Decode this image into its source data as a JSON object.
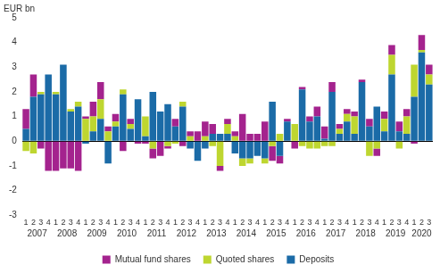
{
  "chart_data": {
    "type": "bar",
    "stacked": true,
    "y_label": "EUR bn",
    "legend": "bottom",
    "grid": false,
    "categories": [
      "1",
      "2",
      "3",
      "4",
      "1",
      "2",
      "3",
      "4",
      "1",
      "2",
      "3",
      "4",
      "1",
      "2",
      "3",
      "4",
      "1",
      "2",
      "3",
      "4",
      "1",
      "2",
      "3",
      "4",
      "1",
      "2",
      "3",
      "4",
      "1",
      "2",
      "3",
      "4",
      "1",
      "2",
      "3",
      "4",
      "1",
      "2",
      "3",
      "4",
      "1",
      "2",
      "3",
      "4",
      "1",
      "2",
      "3",
      "4",
      "1",
      "2",
      "3",
      "4",
      "1",
      "2",
      "3"
    ],
    "groups": [
      "2007",
      "2008",
      "2009",
      "2010",
      "2011",
      "2012",
      "2013",
      "2014",
      "2015",
      "2016",
      "2017",
      "2018",
      "2019",
      "2020"
    ],
    "ylim": [
      -3,
      5
    ],
    "yticks": [
      -3,
      -2,
      -1,
      0,
      1,
      2,
      3,
      4,
      5
    ],
    "series": [
      {
        "name": "Deposits",
        "color": "#1b6ba7",
        "values": [
          0.5,
          1.8,
          1.9,
          2.7,
          1.9,
          3.1,
          1.2,
          1.4,
          -0.1,
          0.4,
          0.9,
          -0.9,
          0.6,
          1.9,
          0.5,
          1.7,
          0.2,
          2.0,
          1.2,
          1.5,
          0.6,
          1.4,
          -0.3,
          -0.8,
          -0.3,
          0.3,
          0.3,
          0.3,
          -0.5,
          -0.7,
          -0.7,
          -0.6,
          -0.7,
          1.6,
          -0.6,
          0.8,
          0.0,
          2.1,
          0.8,
          1.0,
          0.1,
          2.0,
          0.3,
          0.8,
          0.3,
          2.4,
          0.6,
          1.4,
          0.4,
          2.7,
          0.4,
          0.3,
          1.8,
          3.6,
          2.3
        ]
      },
      {
        "name": "Quoted shares",
        "color": "#bed630",
        "values": [
          -0.4,
          -0.5,
          0.1,
          0.0,
          0.1,
          0.0,
          0.1,
          0.2,
          0.9,
          0.6,
          0.8,
          0.4,
          0.2,
          0.2,
          0.2,
          0.0,
          0.8,
          -0.3,
          0.0,
          -0.2,
          -0.1,
          0.2,
          0.2,
          0.0,
          0.2,
          -0.2,
          -1.0,
          0.4,
          0.2,
          -0.3,
          -0.2,
          0.0,
          -0.2,
          -0.2,
          0.3,
          0.0,
          0.7,
          -0.2,
          -0.3,
          -0.3,
          -0.2,
          -0.2,
          0.2,
          0.3,
          0.7,
          0.0,
          -0.6,
          -0.3,
          0.5,
          0.8,
          -0.3,
          0.7,
          1.3,
          0.1,
          0.4
        ]
      },
      {
        "name": "Mutual fund shares",
        "color": "#a4238e",
        "values": [
          0.8,
          0.9,
          -0.3,
          -1.2,
          -1.2,
          -1.1,
          -1.1,
          -1.2,
          0.1,
          0.6,
          0.7,
          0.2,
          0.3,
          -0.4,
          0.2,
          -0.1,
          -0.1,
          -0.4,
          -0.6,
          -0.1,
          0.3,
          -0.2,
          0.2,
          0.4,
          0.6,
          0.4,
          -0.2,
          0.2,
          0.2,
          1.1,
          0.3,
          0.3,
          0.8,
          -0.6,
          -0.3,
          0.1,
          -0.3,
          0.1,
          0.2,
          0.4,
          0.5,
          0.4,
          0.2,
          0.2,
          0.2,
          0.1,
          0.3,
          -0.3,
          0.3,
          0.4,
          0.4,
          0.3,
          -0.1,
          0.6,
          0.4
        ]
      }
    ]
  }
}
